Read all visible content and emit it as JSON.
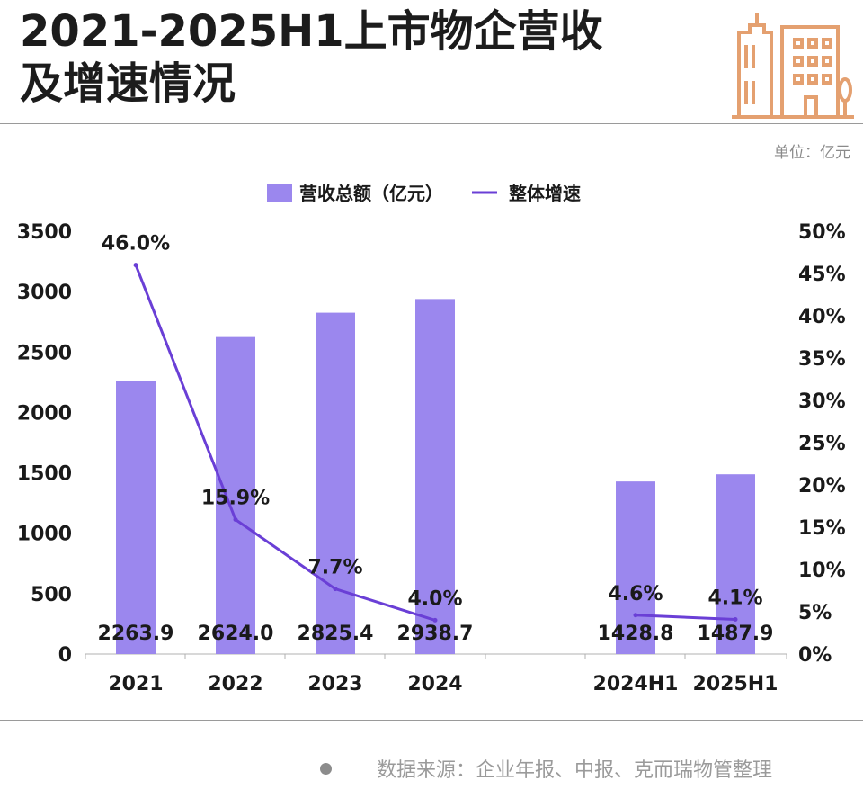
{
  "header": {
    "title_line1": "2021-2025H1上市物企营收",
    "title_line2": "及增速情况",
    "unit": "单位：亿元"
  },
  "footer": {
    "source": "数据来源：企业年报、中报、克而瑞物管整理"
  },
  "colors": {
    "bar": "#9B87EE",
    "line": "#6A3FD6",
    "text": "#1a1a1a",
    "logo": "#E4A070"
  },
  "chart_data": {
    "type": "bar",
    "categories": [
      "2021",
      "2022",
      "2023",
      "2024",
      "2024H1",
      "2025H1"
    ],
    "series": [
      {
        "name": "营收总额（亿元）",
        "type": "bar",
        "axis": "left",
        "values": [
          2263.9,
          2624.0,
          2825.4,
          2938.7,
          1428.8,
          1487.9
        ],
        "labels": [
          "2263.9",
          "2624.0",
          "2825.4",
          "2938.7",
          "1428.8",
          "1487.9"
        ]
      },
      {
        "name": "整体增速",
        "type": "line",
        "axis": "right",
        "segments": [
          [
            0,
            1,
            2,
            3
          ],
          [
            4,
            5
          ]
        ],
        "values": [
          46.0,
          15.9,
          7.7,
          4.0,
          4.6,
          4.1
        ],
        "labels": [
          "46.0%",
          "15.9%",
          "7.7%",
          "4.0%",
          "4.6%",
          "4.1%"
        ]
      }
    ],
    "y_left": {
      "range": [
        0,
        3500
      ],
      "ticks": [
        "0",
        "500",
        "1000",
        "1500",
        "2000",
        "2500",
        "3000",
        "3500"
      ]
    },
    "y_right": {
      "range": [
        0,
        50
      ],
      "ticks": [
        "0%",
        "5%",
        "10%",
        "15%",
        "20%",
        "25%",
        "30%",
        "35%",
        "40%",
        "45%",
        "50%"
      ]
    },
    "legend": "top-center",
    "grid": false
  }
}
